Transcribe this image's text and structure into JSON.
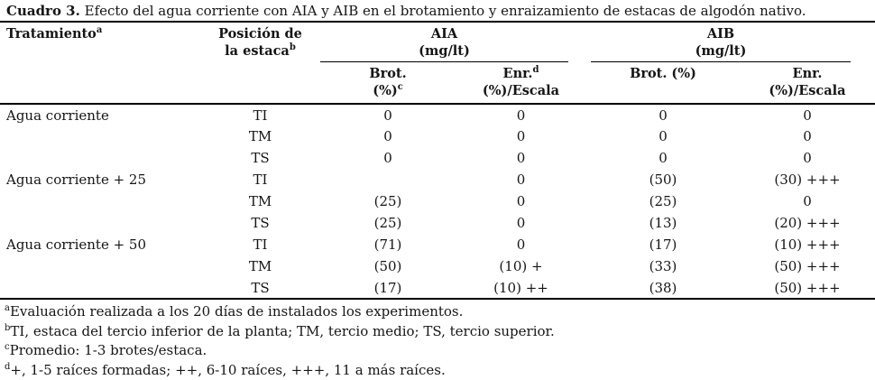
{
  "title": {
    "label": "Cuadro 3.",
    "text": "Efecto del agua corriente con AIA y AIB en el brotamiento y enraizamiento de estacas de algodón nativo."
  },
  "header": {
    "tratamiento": "Tratamiento",
    "tratamiento_sup": "a",
    "posicion_line1": "Posición de",
    "posicion_line2": "la estaca",
    "posicion_sup": "b",
    "aia_name": "AIA",
    "aia_unit": "(mg/lt)",
    "aib_name": "AIB",
    "aib_unit": "(mg/lt)",
    "aia_brot_line1": "Brot.",
    "aia_brot_line2": "(%)",
    "aia_brot_sup": "c",
    "aia_enr_line1": "Enr.",
    "aia_enr_sup": "d",
    "aia_enr_line2": "(%)/Escala",
    "aib_brot": "Brot. (%)",
    "aib_enr_line1": "Enr.",
    "aib_enr_line2": "(%)/Escala"
  },
  "rows": [
    {
      "tratamiento": "Agua corriente",
      "posicion": "TI",
      "aia_brot": "0",
      "aia_enr": "0",
      "aib_brot": "0",
      "aib_enr": "0"
    },
    {
      "tratamiento": "",
      "posicion": "TM",
      "aia_brot": "0",
      "aia_enr": "0",
      "aib_brot": "0",
      "aib_enr": "0"
    },
    {
      "tratamiento": "",
      "posicion": "TS",
      "aia_brot": "0",
      "aia_enr": "0",
      "aib_brot": "0",
      "aib_enr": "0"
    },
    {
      "tratamiento": "Agua corriente + 25",
      "posicion": "TI",
      "aia_brot": "",
      "aia_enr": "0",
      "aib_brot": "(50)",
      "aib_enr": "(30) +++"
    },
    {
      "tratamiento": "",
      "posicion": "TM",
      "aia_brot": "(25)",
      "aia_enr": "0",
      "aib_brot": "(25)",
      "aib_enr": "0"
    },
    {
      "tratamiento": "",
      "posicion": "TS",
      "aia_brot": "(25)",
      "aia_enr": "0",
      "aib_brot": "(13)",
      "aib_enr": "(20) +++"
    },
    {
      "tratamiento": "Agua corriente + 50",
      "posicion": "TI",
      "aia_brot": "(71)",
      "aia_enr": "0",
      "aib_brot": "(17)",
      "aib_enr": "(10) +++"
    },
    {
      "tratamiento": "",
      "posicion": "TM",
      "aia_brot": "(50)",
      "aia_enr": "(10) +",
      "aib_brot": "(33)",
      "aib_enr": "(50) +++"
    },
    {
      "tratamiento": "",
      "posicion": "TS",
      "aia_brot": "(17)",
      "aia_enr": "(10) ++",
      "aib_brot": "(38)",
      "aib_enr": "(50) +++"
    }
  ],
  "footnotes": [
    {
      "sup": "a",
      "text": "Evaluación realizada a los 20 días de instalados los experimentos."
    },
    {
      "sup": "b",
      "text": "TI, estaca del tercio inferior de la planta; TM, tercio medio; TS, tercio superior."
    },
    {
      "sup": "c",
      "text": "Promedio: 1-3 brotes/estaca."
    },
    {
      "sup": "d",
      "text": "+, 1-5 raíces formadas; ++, 6-10 raíces, +++, 11 a más raíces."
    }
  ]
}
